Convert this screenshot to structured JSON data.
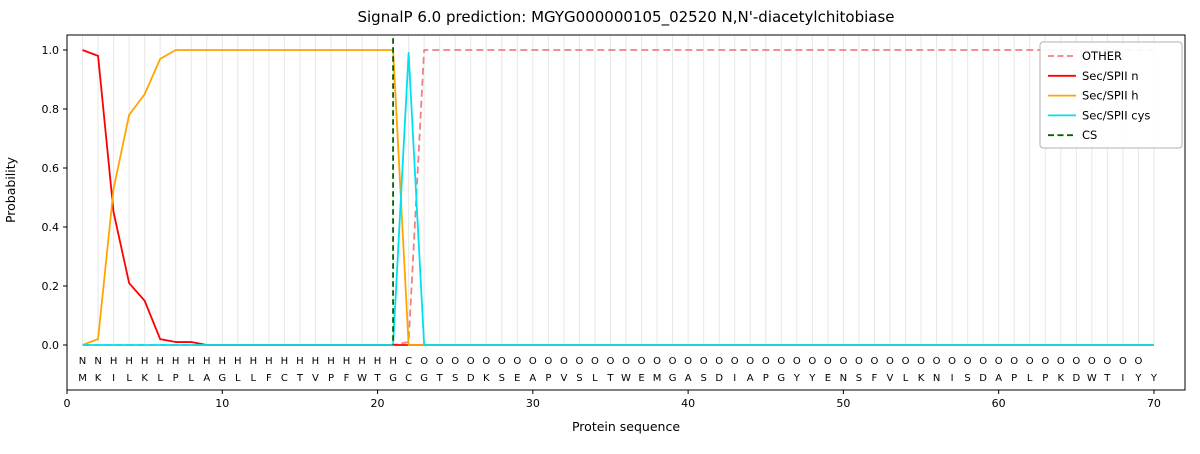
{
  "chart_data": {
    "type": "line",
    "title": "SignalP 6.0 prediction: MGYG000000105_02520 N,N'-diacetylchitobiase",
    "xlabel": "Protein sequence",
    "ylabel": "Probability",
    "xlim": [
      0,
      72
    ],
    "ylim": [
      0,
      1.05
    ],
    "x_ticks": [
      0,
      10,
      20,
      30,
      40,
      50,
      60,
      70
    ],
    "y_ticks": [
      0,
      0.2,
      0.4,
      0.6,
      0.8,
      1.0
    ],
    "grid": "vertical-per-residue",
    "legend_position": "upper right",
    "n_residues": 70,
    "x_start": 1,
    "sequence": "MKILKLPLAGLLFCTVPFWTGCGTSDKSEAPVSLTWEMGASDIAPGYYENSFVLKNISDAPLPKDWTIYY",
    "residue_labels": "NNHHHHHHHHHHHHHHHHHHHCOOOOOOOOOOOOOOOOOOOOOOOOOOOOOOOOOOOOOOOOOOOOOOO",
    "label_colors": {
      "N": "#ff0000",
      "H": "#ffa500",
      "C": "#00e1ee",
      "O": "#8c8c8c"
    },
    "colors": {
      "grid": "#e7e7e7",
      "spine": "#000000",
      "sequence_text": "#000000"
    },
    "cs_marker": {
      "name": "CS",
      "color": "#006400",
      "style": "dashed",
      "x": 21
    },
    "series": [
      {
        "name": "OTHER",
        "color": "#f08080",
        "style": "dashed",
        "values": [
          0,
          0,
          0,
          0,
          0,
          0,
          0,
          0,
          0,
          0,
          0,
          0,
          0,
          0,
          0,
          0,
          0,
          0,
          0,
          0,
          0,
          0.01,
          1,
          1,
          1,
          1,
          1,
          1,
          1,
          1,
          1,
          1,
          1,
          1,
          1,
          1,
          1,
          1,
          1,
          1,
          1,
          1,
          1,
          1,
          1,
          1,
          1,
          1,
          1,
          1,
          1,
          1,
          1,
          1,
          1,
          1,
          1,
          1,
          1,
          1,
          1,
          1,
          1,
          1,
          1,
          1,
          1,
          1,
          1,
          1
        ]
      },
      {
        "name": "Sec/SPII n",
        "color": "#ff0000",
        "style": "solid",
        "values": [
          1.0,
          0.98,
          0.45,
          0.21,
          0.15,
          0.02,
          0.01,
          0.01,
          0,
          0,
          0,
          0,
          0,
          0,
          0,
          0,
          0,
          0,
          0,
          0,
          0,
          0,
          0,
          0,
          0,
          0,
          0,
          0,
          0,
          0,
          0,
          0,
          0,
          0,
          0,
          0,
          0,
          0,
          0,
          0,
          0,
          0,
          0,
          0,
          0,
          0,
          0,
          0,
          0,
          0,
          0,
          0,
          0,
          0,
          0,
          0,
          0,
          0,
          0,
          0,
          0,
          0,
          0,
          0,
          0,
          0,
          0,
          0,
          0,
          0
        ]
      },
      {
        "name": "Sec/SPII h",
        "color": "#ffa500",
        "style": "solid",
        "values": [
          0,
          0.02,
          0.53,
          0.78,
          0.85,
          0.97,
          1,
          1,
          1,
          1,
          1,
          1,
          1,
          1,
          1,
          1,
          1,
          1,
          1,
          1,
          1,
          0,
          0,
          0,
          0,
          0,
          0,
          0,
          0,
          0,
          0,
          0,
          0,
          0,
          0,
          0,
          0,
          0,
          0,
          0,
          0,
          0,
          0,
          0,
          0,
          0,
          0,
          0,
          0,
          0,
          0,
          0,
          0,
          0,
          0,
          0,
          0,
          0,
          0,
          0,
          0,
          0,
          0,
          0,
          0,
          0,
          0,
          0,
          0,
          0
        ]
      },
      {
        "name": "Sec/SPII cys",
        "color": "#00e1ee",
        "style": "solid",
        "values": [
          0,
          0,
          0,
          0,
          0,
          0,
          0,
          0,
          0,
          0,
          0,
          0,
          0,
          0,
          0,
          0,
          0,
          0,
          0,
          0,
          0,
          0.99,
          0,
          0,
          0,
          0,
          0,
          0,
          0,
          0,
          0,
          0,
          0,
          0,
          0,
          0,
          0,
          0,
          0,
          0,
          0,
          0,
          0,
          0,
          0,
          0,
          0,
          0,
          0,
          0,
          0,
          0,
          0,
          0,
          0,
          0,
          0,
          0,
          0,
          0,
          0,
          0,
          0,
          0,
          0,
          0,
          0,
          0,
          0,
          0
        ]
      }
    ]
  }
}
